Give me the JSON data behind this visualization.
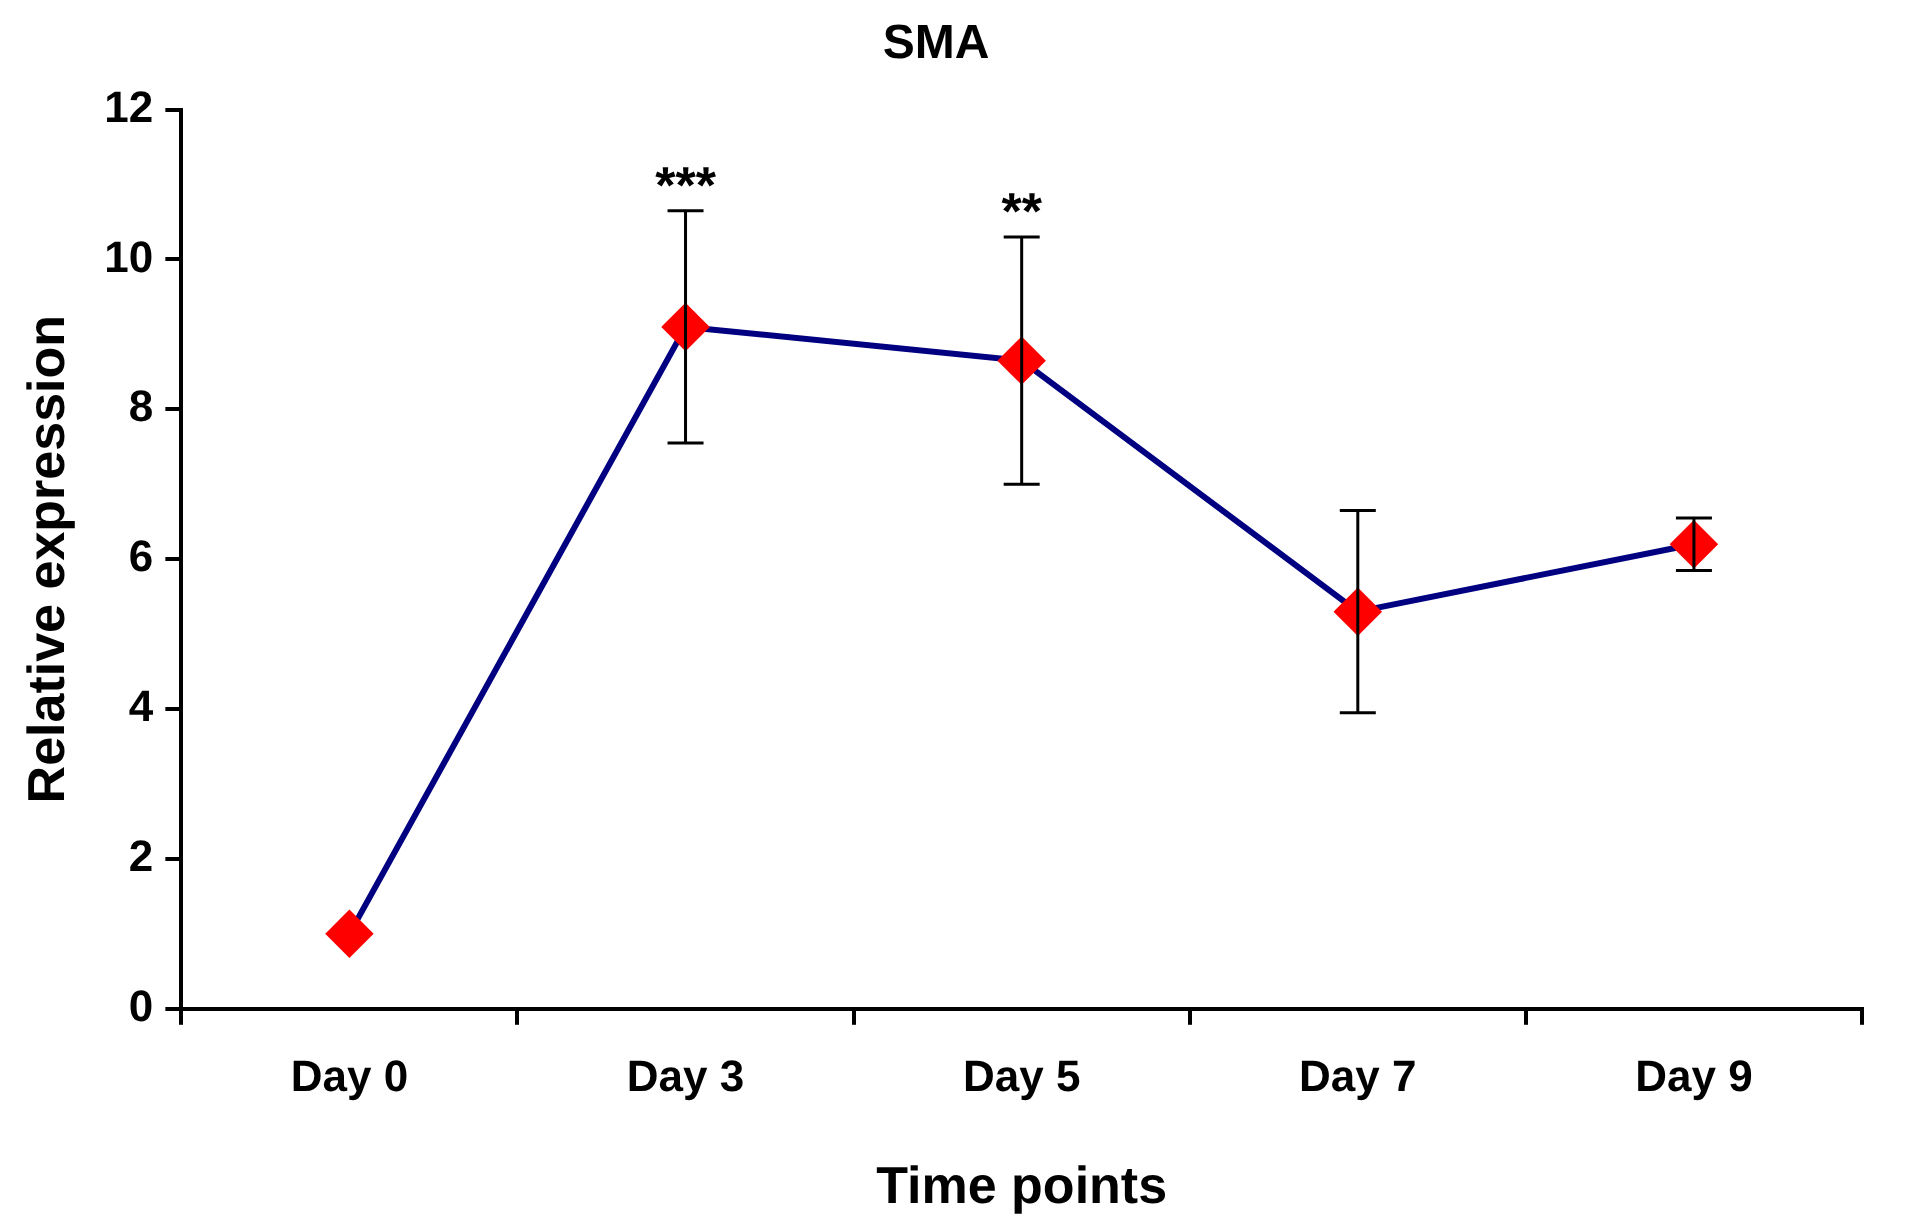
{
  "chart_data": {
    "type": "line",
    "title": "SMA",
    "xlabel": "Time points",
    "ylabel": "Relative expression",
    "categories": [
      "Day 0",
      "Day 3",
      "Day 5",
      "Day 7",
      "Day 9"
    ],
    "series": [
      {
        "color": "#000080",
        "colors": [
          "#ff0000",
          "#ff0000",
          "#ff0000",
          "#ff0000",
          "#ff0000"
        ],
        "values": [
          1.0,
          9.1,
          8.65,
          5.3,
          6.2
        ],
        "errors": [
          null,
          1.55,
          1.65,
          1.35,
          0.35
        ]
      }
    ],
    "ylim": [
      0,
      12
    ],
    "yticks": [
      0,
      2,
      4,
      6,
      8,
      10,
      12
    ],
    "marker": "diamond",
    "annotations": [
      {
        "text": "***",
        "x": "Day 3",
        "y": 10.65
      },
      {
        "text": "**",
        "x": "Day 5",
        "y": 10.3
      }
    ]
  }
}
